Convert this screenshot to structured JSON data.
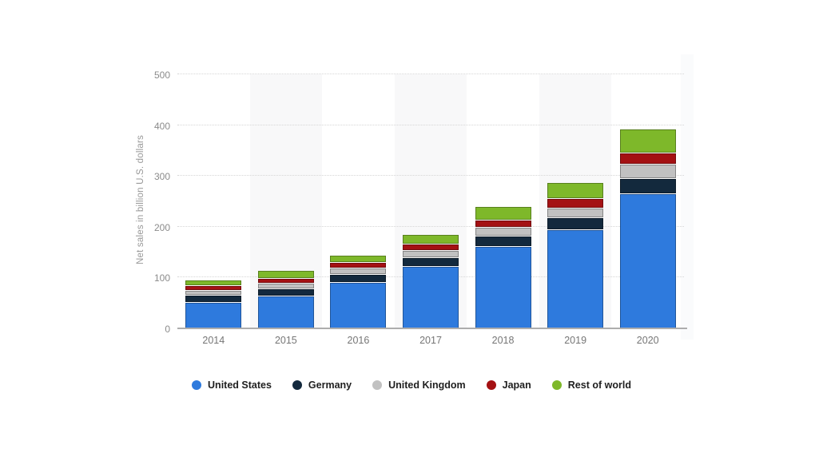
{
  "chart_data": {
    "type": "bar",
    "stacked": true,
    "title": "",
    "ylabel": "Net sales in billion U.S. dollars",
    "xlabel": "",
    "ylim": [
      0,
      500
    ],
    "yticks": [
      0,
      100,
      200,
      300,
      400,
      500
    ],
    "grid": "horizontal-dotted",
    "legend_position": "bottom",
    "background_bands_behind": [
      "2015",
      "2017",
      "2019"
    ],
    "categories": [
      "2014",
      "2015",
      "2016",
      "2017",
      "2018",
      "2019",
      "2020"
    ],
    "series": [
      {
        "name": "United States",
        "color": "#2e7add",
        "values": [
          50.83,
          63.71,
          90.35,
          120.49,
          160.15,
          193.64,
          263.52
        ]
      },
      {
        "name": "Germany",
        "color": "#13293d",
        "values": [
          11.92,
          11.82,
          14.15,
          16.95,
          19.88,
          22.23,
          29.57
        ]
      },
      {
        "name": "United Kingdom",
        "color": "#c1c1c1",
        "values": [
          8.34,
          9.03,
          9.55,
          11.37,
          14.52,
          17.53,
          26.48
        ]
      },
      {
        "name": "Japan",
        "color": "#a41113",
        "values": [
          7.91,
          8.26,
          10.8,
          11.91,
          13.83,
          16.0,
          20.46
        ]
      },
      {
        "name": "Rest of world",
        "color": "#7eb82a",
        "values": [
          9.98,
          14.18,
          11.15,
          17.15,
          24.51,
          31.13,
          46.04
        ]
      }
    ]
  }
}
